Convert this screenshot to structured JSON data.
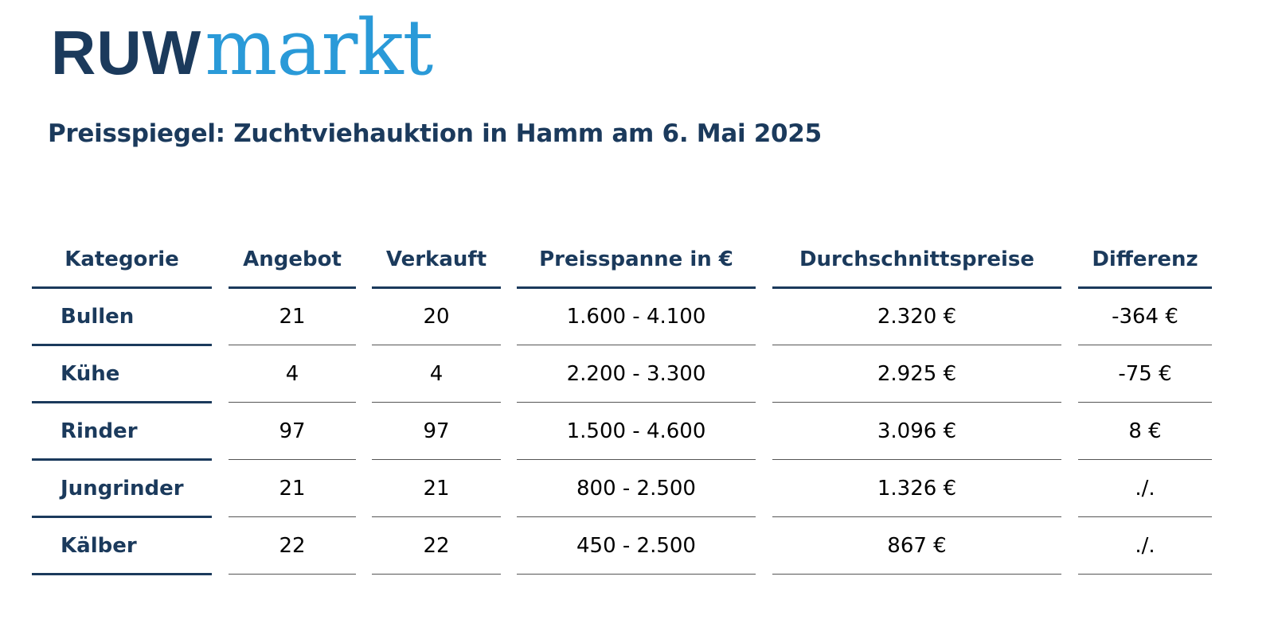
{
  "logo": {
    "part1": "RUW",
    "part2": "markt",
    "colors": {
      "part1": "#1b3a5c",
      "part2": "#2a9ad8"
    }
  },
  "title": "Preisspiegel: Zuchtviehauktion in Hamm am 6. Mai 2025",
  "table": {
    "headers": {
      "kategorie": "Kategorie",
      "angebot": "Angebot",
      "verkauft": "Verkauft",
      "preisspanne": "Preisspanne in €",
      "durchschnitt": "Durchschnittspreise",
      "differenz": "Differenz"
    },
    "rows": [
      {
        "kategorie": "Bullen",
        "angebot": "21",
        "verkauft": "20",
        "preisspanne": "1.600 - 4.100",
        "durchschnitt": "2.320 €",
        "differenz": "-364 €"
      },
      {
        "kategorie": "Kühe",
        "angebot": "4",
        "verkauft": "4",
        "preisspanne": "2.200 - 3.300",
        "durchschnitt": "2.925 €",
        "differenz": "-75 €"
      },
      {
        "kategorie": "Rinder",
        "angebot": "97",
        "verkauft": "97",
        "preisspanne": "1.500 - 4.600",
        "durchschnitt": "3.096 €",
        "differenz": "8 €"
      },
      {
        "kategorie": "Jungrinder",
        "angebot": "21",
        "verkauft": "21",
        "preisspanne": "800 - 2.500",
        "durchschnitt": "1.326 €",
        "differenz": "./."
      },
      {
        "kategorie": "Kälber",
        "angebot": "22",
        "verkauft": "22",
        "preisspanne": "450 - 2.500",
        "durchschnitt": "867 €",
        "differenz": "./."
      }
    ]
  },
  "colors": {
    "heading": "#1b3a5c",
    "accent": "#2a9ad8",
    "rule": "#555555"
  }
}
